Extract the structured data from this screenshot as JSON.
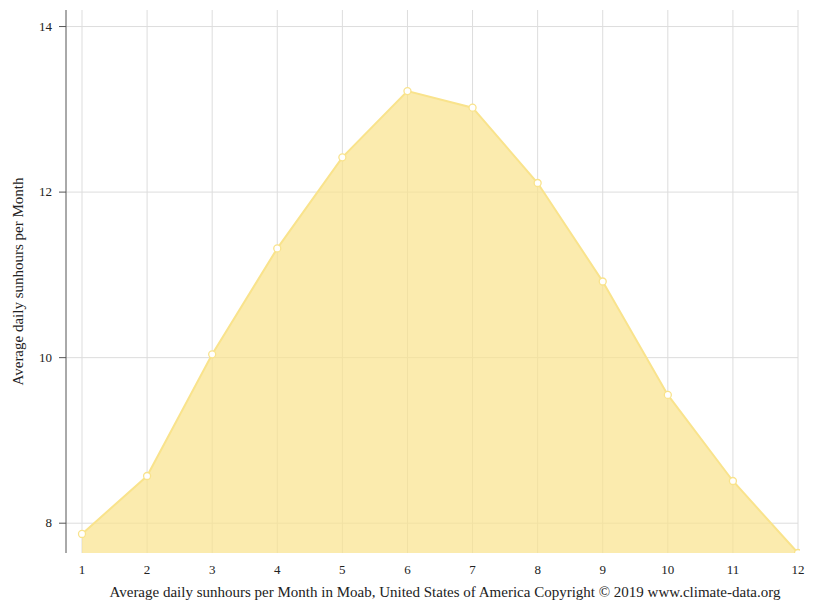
{
  "chart_data": {
    "type": "area",
    "title": "Average daily sunhours per Month in Moab, United States of America Copyright © 2019 www.climate-data.org",
    "y_label": "Average daily sunhours per Month",
    "x": [
      1,
      2,
      3,
      4,
      5,
      6,
      7,
      8,
      9,
      10,
      11,
      12
    ],
    "values": [
      7.87,
      8.57,
      10.04,
      11.32,
      12.42,
      13.22,
      13.02,
      12.11,
      10.92,
      9.55,
      8.51,
      7.64
    ],
    "xlim": [
      1,
      12
    ],
    "xticks": [
      1,
      2,
      3,
      4,
      5,
      6,
      7,
      8,
      9,
      10,
      11,
      12
    ],
    "ylim": [
      7.64,
      14.2
    ],
    "yticks": [
      8,
      10,
      12,
      14
    ],
    "color": "#f9e38c",
    "marker": "circle",
    "grid": true
  }
}
